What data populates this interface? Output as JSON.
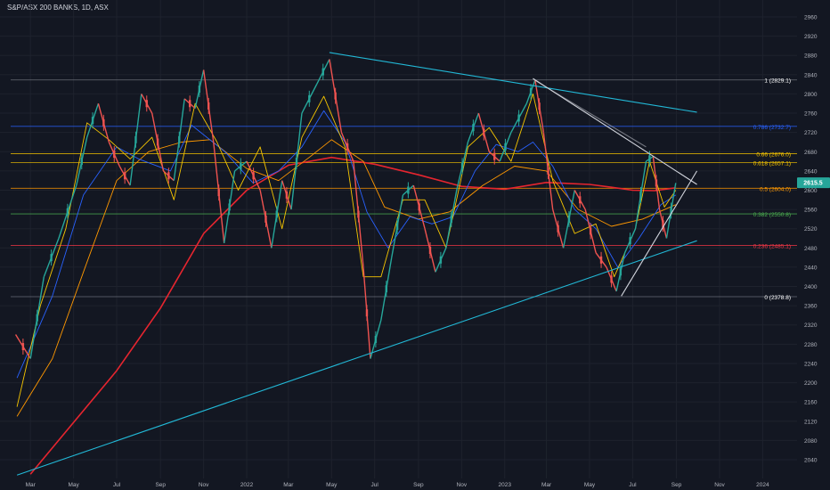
{
  "chart_data": {
    "type": "line",
    "title": "S&P/ASX 200 BANKS, 1D, ASX",
    "x_ticks": [
      "Mar",
      "May",
      "Jul",
      "Sep",
      "Nov",
      "2022",
      "Mar",
      "May",
      "Jul",
      "Sep",
      "Nov",
      "2023",
      "Mar",
      "May",
      "Jul",
      "Sep",
      "Nov",
      "2024"
    ],
    "x_tick_dates": [
      "2021-03-01",
      "2021-05-01",
      "2021-07-01",
      "2021-09-01",
      "2021-11-01",
      "2022-01-01",
      "2022-03-01",
      "2022-05-01",
      "2022-07-01",
      "2022-09-01",
      "2022-11-01",
      "2023-01-01",
      "2023-03-01",
      "2023-05-01",
      "2023-07-01",
      "2023-09-01",
      "2023-11-01",
      "2024-01-01"
    ],
    "y_ticks": [
      2040,
      2080,
      2120,
      2160,
      2200,
      2240,
      2280,
      2320,
      2360,
      2400,
      2440,
      2480,
      2520,
      2560,
      2600,
      2640,
      2680,
      2720,
      2760,
      2800,
      2840,
      2880,
      2920,
      2960
    ],
    "ylim": [
      2020,
      2980
    ],
    "last_price": "2615.5",
    "price_color": "#26a69a",
    "fib_levels": [
      {
        "label": "1 (2829.1)",
        "value": 2829.1,
        "color": "#787b86",
        "text_color": "#ffffff"
      },
      {
        "label": "0.786 (2732.7)",
        "value": 2732.7,
        "color": "#2962ff",
        "text_color": "#2962ff"
      },
      {
        "label": "0.66 (2676.0)",
        "value": 2676.0,
        "color": "#f7c600",
        "text_color": "#f7c600"
      },
      {
        "label": "0.618 (2657.1)",
        "value": 2657.1,
        "color": "#f7c600",
        "text_color": "#f7c600"
      },
      {
        "label": "0.5 (2604.0)",
        "value": 2604.0,
        "color": "#ff9800",
        "text_color": "#ff9800"
      },
      {
        "label": "0.382 (2550.8)",
        "value": 2550.8,
        "color": "#4caf50",
        "text_color": "#4caf50"
      },
      {
        "label": "0.236 (2485.1)",
        "value": 2485.1,
        "color": "#f23645",
        "text_color": "#f23645"
      },
      {
        "label": "0 (2378.8)",
        "value": 2378.8,
        "color": "#787b86",
        "text_color": "#ffffff"
      }
    ],
    "trend_lines": [
      {
        "name": "upper-trendline",
        "color": "#22b8d6",
        "points": [
          [
            "2022-04-28",
            2886
          ],
          [
            "2023-09-30",
            2762
          ]
        ]
      },
      {
        "name": "lower-trendline",
        "color": "#22b8d6",
        "points": [
          [
            "2021-02-10",
            2008
          ],
          [
            "2023-09-30",
            2495
          ]
        ]
      },
      {
        "name": "triangle-upper",
        "color": "#d1d4dc",
        "points": [
          [
            "2023-02-10",
            2832
          ],
          [
            "2023-09-30",
            2612
          ]
        ]
      },
      {
        "name": "triangle-lower",
        "color": "#d1d4dc",
        "points": [
          [
            "2023-06-15",
            2380
          ],
          [
            "2023-09-30",
            2640
          ]
        ]
      },
      {
        "name": "channel-mid",
        "color": "#d1d4dc",
        "points": [
          [
            "2023-02-13",
            2828
          ],
          [
            "2023-07-20",
            2690
          ]
        ]
      }
    ],
    "moving_averages": [
      {
        "name": "ma-200",
        "color": "#e6252f",
        "points": [
          [
            "2021-03-01",
            2010
          ],
          [
            "2021-07-01",
            2225
          ],
          [
            "2021-09-01",
            2355
          ],
          [
            "2021-11-01",
            2510
          ],
          [
            "2022-01-01",
            2600
          ],
          [
            "2022-03-01",
            2652
          ],
          [
            "2022-05-01",
            2668
          ],
          [
            "2022-07-01",
            2654
          ],
          [
            "2022-09-01",
            2632
          ],
          [
            "2022-11-01",
            2608
          ],
          [
            "2023-01-01",
            2602
          ],
          [
            "2023-03-01",
            2616
          ],
          [
            "2023-05-01",
            2612
          ],
          [
            "2023-06-01",
            2606
          ],
          [
            "2023-07-01",
            2600
          ],
          [
            "2023-08-01",
            2599
          ],
          [
            "2023-08-31",
            2605
          ]
        ]
      },
      {
        "name": "ma-100",
        "color": "#ff9800",
        "points": [
          [
            "2021-02-10",
            2130
          ],
          [
            "2021-04-01",
            2250
          ],
          [
            "2021-05-15",
            2430
          ],
          [
            "2021-07-01",
            2620
          ],
          [
            "2021-08-15",
            2680
          ],
          [
            "2021-10-01",
            2700
          ],
          [
            "2021-11-10",
            2705
          ],
          [
            "2022-01-01",
            2645
          ],
          [
            "2022-02-15",
            2620
          ],
          [
            "2022-04-01",
            2670
          ],
          [
            "2022-05-01",
            2705
          ],
          [
            "2022-06-15",
            2660
          ],
          [
            "2022-07-15",
            2565
          ],
          [
            "2022-09-01",
            2540
          ],
          [
            "2022-10-15",
            2555
          ],
          [
            "2022-12-01",
            2610
          ],
          [
            "2023-01-15",
            2650
          ],
          [
            "2023-03-01",
            2640
          ],
          [
            "2023-04-15",
            2560
          ],
          [
            "2023-06-01",
            2525
          ],
          [
            "2023-07-15",
            2540
          ],
          [
            "2023-08-31",
            2570
          ]
        ]
      },
      {
        "name": "ma-50",
        "color": "#2962ff",
        "points": [
          [
            "2021-02-10",
            2210
          ],
          [
            "2021-04-01",
            2380
          ],
          [
            "2021-05-15",
            2590
          ],
          [
            "2021-07-01",
            2690
          ],
          [
            "2021-08-01",
            2665
          ],
          [
            "2021-09-15",
            2640
          ],
          [
            "2021-10-15",
            2735
          ],
          [
            "2021-12-01",
            2680
          ],
          [
            "2022-01-10",
            2615
          ],
          [
            "2022-02-15",
            2640
          ],
          [
            "2022-03-20",
            2690
          ],
          [
            "2022-04-20",
            2765
          ],
          [
            "2022-05-20",
            2700
          ],
          [
            "2022-06-20",
            2555
          ],
          [
            "2022-07-20",
            2480
          ],
          [
            "2022-08-20",
            2545
          ],
          [
            "2022-09-20",
            2530
          ],
          [
            "2022-10-20",
            2545
          ],
          [
            "2022-11-20",
            2640
          ],
          [
            "2022-12-20",
            2695
          ],
          [
            "2023-01-20",
            2680
          ],
          [
            "2023-02-10",
            2700
          ],
          [
            "2023-03-10",
            2650
          ],
          [
            "2023-04-10",
            2560
          ],
          [
            "2023-05-10",
            2520
          ],
          [
            "2023-06-10",
            2440
          ],
          [
            "2023-07-10",
            2500
          ],
          [
            "2023-08-10",
            2570
          ],
          [
            "2023-08-31",
            2590
          ]
        ]
      },
      {
        "name": "ma-20",
        "color": "#f7c600",
        "points": [
          [
            "2021-02-10",
            2150
          ],
          [
            "2021-03-15",
            2360
          ],
          [
            "2021-04-20",
            2520
          ],
          [
            "2021-05-20",
            2740
          ],
          [
            "2021-06-20",
            2705
          ],
          [
            "2021-07-20",
            2665
          ],
          [
            "2021-08-20",
            2710
          ],
          [
            "2021-09-20",
            2580
          ],
          [
            "2021-10-20",
            2780
          ],
          [
            "2021-11-20",
            2700
          ],
          [
            "2021-12-20",
            2600
          ],
          [
            "2022-01-20",
            2690
          ],
          [
            "2022-02-20",
            2520
          ],
          [
            "2022-03-20",
            2710
          ],
          [
            "2022-04-20",
            2795
          ],
          [
            "2022-05-20",
            2690
          ],
          [
            "2022-06-15",
            2420
          ],
          [
            "2022-07-10",
            2420
          ],
          [
            "2022-08-10",
            2580
          ],
          [
            "2022-09-10",
            2580
          ],
          [
            "2022-10-10",
            2480
          ],
          [
            "2022-11-10",
            2690
          ],
          [
            "2022-12-10",
            2730
          ],
          [
            "2023-01-10",
            2660
          ],
          [
            "2023-02-10",
            2800
          ],
          [
            "2023-03-10",
            2620
          ],
          [
            "2023-04-10",
            2510
          ],
          [
            "2023-05-10",
            2530
          ],
          [
            "2023-06-05",
            2420
          ],
          [
            "2023-07-05",
            2520
          ],
          [
            "2023-07-25",
            2660
          ],
          [
            "2023-08-15",
            2565
          ],
          [
            "2023-08-31",
            2600
          ]
        ]
      }
    ],
    "price_path": [
      [
        "2021-02-08",
        2300
      ],
      [
        "2021-03-01",
        2250
      ],
      [
        "2021-03-20",
        2420
      ],
      [
        "2021-04-10",
        2500
      ],
      [
        "2021-05-05",
        2610
      ],
      [
        "2021-05-20",
        2710
      ],
      [
        "2021-06-05",
        2780
      ],
      [
        "2021-06-20",
        2700
      ],
      [
        "2021-07-05",
        2650
      ],
      [
        "2021-07-20",
        2610
      ],
      [
        "2021-08-05",
        2800
      ],
      [
        "2021-08-20",
        2760
      ],
      [
        "2021-09-05",
        2640
      ],
      [
        "2021-09-20",
        2620
      ],
      [
        "2021-10-05",
        2790
      ],
      [
        "2021-10-20",
        2770
      ],
      [
        "2021-11-01",
        2850
      ],
      [
        "2021-11-15",
        2700
      ],
      [
        "2021-11-30",
        2490
      ],
      [
        "2021-12-15",
        2640
      ],
      [
        "2022-01-01",
        2660
      ],
      [
        "2022-01-20",
        2600
      ],
      [
        "2022-02-05",
        2480
      ],
      [
        "2022-02-20",
        2620
      ],
      [
        "2022-03-05",
        2560
      ],
      [
        "2022-03-20",
        2760
      ],
      [
        "2022-04-10",
        2820
      ],
      [
        "2022-04-28",
        2872
      ],
      [
        "2022-05-15",
        2720
      ],
      [
        "2022-06-01",
        2660
      ],
      [
        "2022-06-15",
        2440
      ],
      [
        "2022-06-25",
        2250
      ],
      [
        "2022-07-10",
        2330
      ],
      [
        "2022-07-25",
        2460
      ],
      [
        "2022-08-10",
        2590
      ],
      [
        "2022-08-25",
        2610
      ],
      [
        "2022-09-10",
        2520
      ],
      [
        "2022-09-25",
        2430
      ],
      [
        "2022-10-10",
        2480
      ],
      [
        "2022-10-25",
        2600
      ],
      [
        "2022-11-10",
        2700
      ],
      [
        "2022-11-25",
        2760
      ],
      [
        "2022-12-10",
        2680
      ],
      [
        "2022-12-25",
        2660
      ],
      [
        "2023-01-10",
        2720
      ],
      [
        "2023-02-01",
        2780
      ],
      [
        "2023-02-13",
        2829
      ],
      [
        "2023-02-25",
        2720
      ],
      [
        "2023-03-10",
        2560
      ],
      [
        "2023-03-25",
        2480
      ],
      [
        "2023-04-10",
        2600
      ],
      [
        "2023-04-25",
        2560
      ],
      [
        "2023-05-10",
        2470
      ],
      [
        "2023-05-25",
        2440
      ],
      [
        "2023-06-08",
        2390
      ],
      [
        "2023-06-20",
        2470
      ],
      [
        "2023-07-05",
        2520
      ],
      [
        "2023-07-20",
        2660
      ],
      [
        "2023-07-30",
        2670
      ],
      [
        "2023-08-08",
        2560
      ],
      [
        "2023-08-18",
        2500
      ],
      [
        "2023-08-31",
        2615
      ]
    ]
  }
}
